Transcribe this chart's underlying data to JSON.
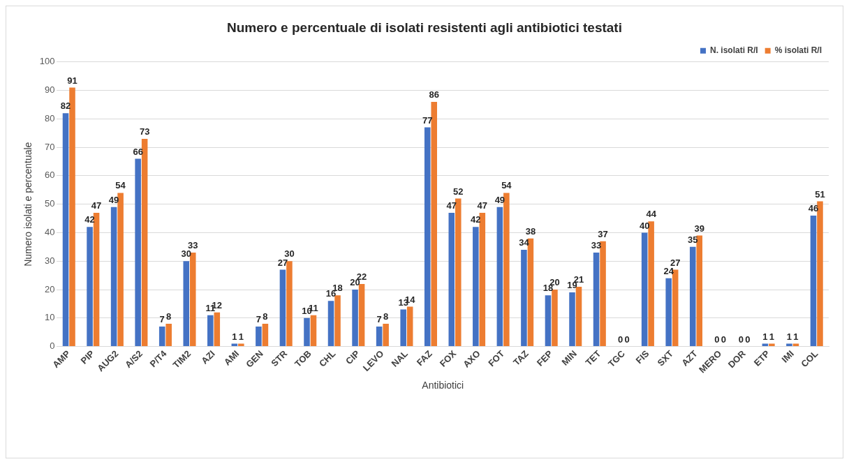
{
  "chart_data": {
    "type": "bar",
    "title": "Numero e percentuale di isolati resistenti agli antibiotici testati",
    "xlabel": "Antibiotici",
    "ylabel": "Numero isolati e percentuale",
    "categories": [
      "AMP",
      "PIP",
      "AUG2",
      "A/S2",
      "P/T4",
      "TIM2",
      "AZI",
      "AMI",
      "GEN",
      "STR",
      "TOB",
      "CHL",
      "CIP",
      "LEVO",
      "NAL",
      "FAZ",
      "FOX",
      "AXO",
      "FOT",
      "TAZ",
      "FEP",
      "MIN",
      "TET",
      "TGC",
      "FIS",
      "SXT",
      "AZT",
      "MERO",
      "DOR",
      "ETP",
      "IMI",
      "COL"
    ],
    "series": [
      {
        "name": "N. isolati R/I",
        "color": "#4472c4",
        "values": [
          82,
          42,
          49,
          66,
          7,
          30,
          11,
          1,
          7,
          27,
          10,
          16,
          20,
          7,
          13,
          77,
          47,
          42,
          49,
          34,
          18,
          19,
          33,
          0,
          40,
          24,
          35,
          0,
          0,
          1,
          1,
          46
        ]
      },
      {
        "name": "% isolati R/I",
        "color": "#ed7d31",
        "values": [
          91,
          47,
          54,
          73,
          8,
          33,
          12,
          1,
          8,
          30,
          11,
          18,
          22,
          8,
          14,
          86,
          52,
          47,
          54,
          38,
          20,
          21,
          37,
          0,
          44,
          27,
          39,
          0,
          0,
          1,
          1,
          51
        ]
      }
    ],
    "ylim": [
      0,
      100
    ],
    "yticks": [
      0,
      10,
      20,
      30,
      40,
      50,
      60,
      70,
      80,
      90,
      100
    ],
    "grid": "y",
    "legend": "top right",
    "data_labels": true
  }
}
